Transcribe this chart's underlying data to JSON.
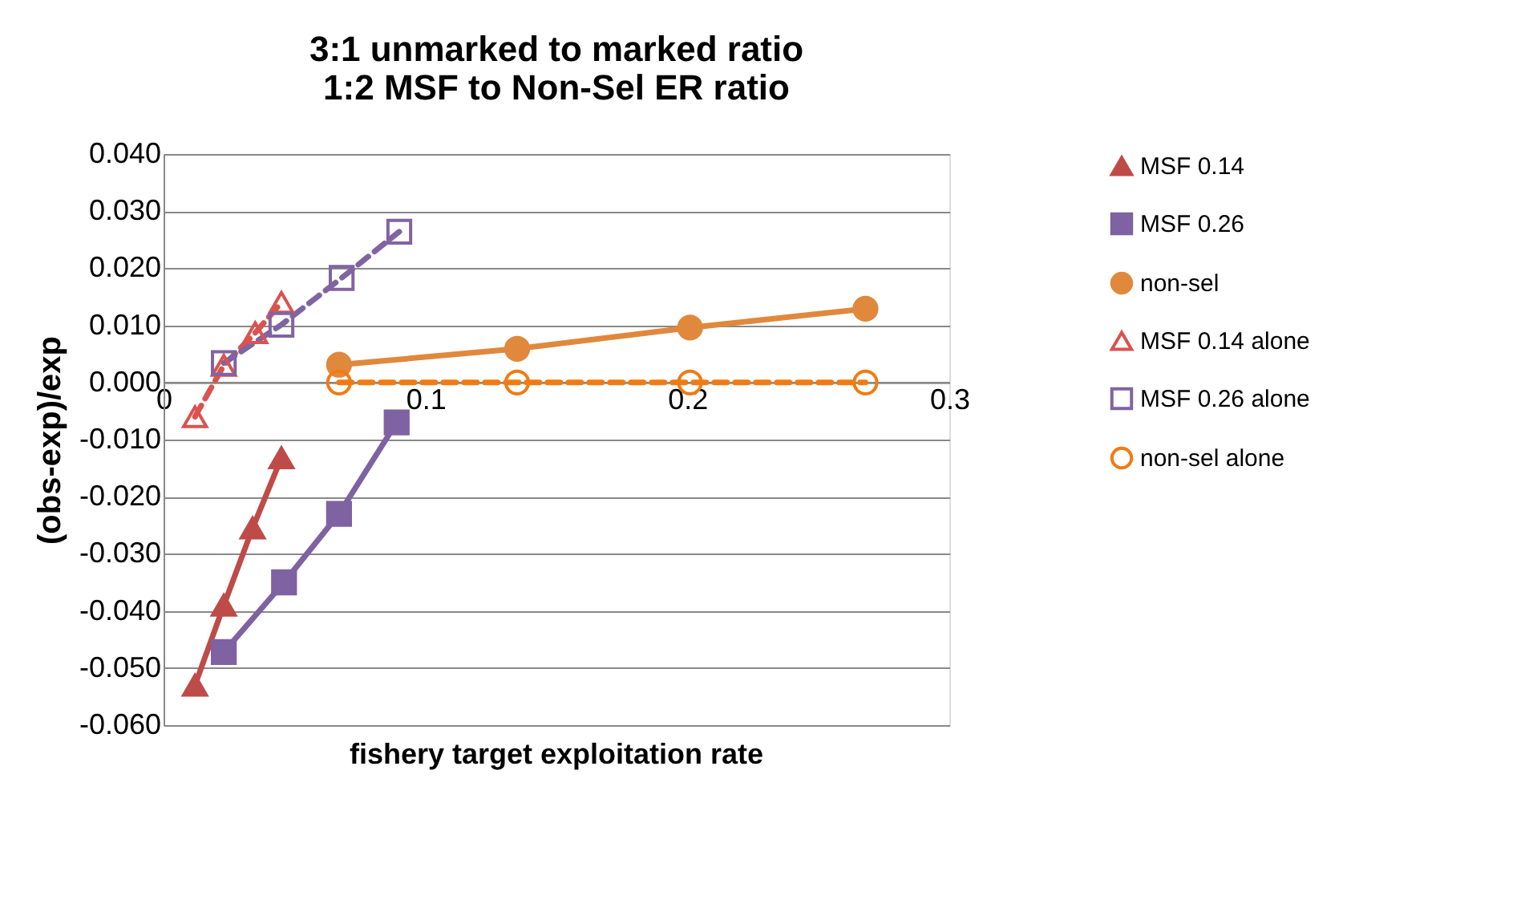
{
  "chart_data": {
    "type": "line",
    "title": "3:1 unmarked to marked ratio\n1:2 MSF to Non-Sel ER ratio",
    "xlabel": "fishery target exploitation rate",
    "ylabel": "(obs-exp)/exp",
    "xlim": [
      0,
      0.3
    ],
    "xticks": [
      0,
      0.1,
      0.2,
      0.3
    ],
    "ylim": [
      -0.06,
      0.04
    ],
    "yticks": [
      {
        "value": -0.06,
        "label": "-0.060"
      },
      {
        "value": -0.05,
        "label": "-0.050"
      },
      {
        "value": -0.04,
        "label": "-0.040"
      },
      {
        "value": -0.03,
        "label": "-0.030"
      },
      {
        "value": -0.02,
        "label": "-0.020"
      },
      {
        "value": -0.01,
        "label": "-0.010"
      },
      {
        "value": 0,
        "label": "0.000"
      },
      {
        "value": 0.01,
        "label": "0.010"
      },
      {
        "value": 0.02,
        "label": "0.020"
      },
      {
        "value": 0.03,
        "label": "0.030"
      },
      {
        "value": 0.04,
        "label": "0.040"
      }
    ],
    "grid": "y",
    "legend": "right",
    "series": [
      {
        "name": "MSF 0.14",
        "color": "#be4b48",
        "marker": "triangle",
        "line_style": "solid",
        "x": [
          0.012,
          0.023,
          0.034,
          0.045
        ],
        "values": [
          -0.053,
          -0.039,
          -0.0255,
          -0.0132
        ]
      },
      {
        "name": "MSF 0.26",
        "color": "#7e62a1",
        "marker": "square",
        "line_style": "solid",
        "x": [
          0.023,
          0.046,
          0.067,
          0.089
        ],
        "values": [
          -0.0472,
          -0.035,
          -0.023,
          -0.007
        ]
      },
      {
        "name": "non-sel",
        "color": "#e0883c",
        "marker": "circle",
        "line_style": "solid",
        "x": [
          0.067,
          0.135,
          0.201,
          0.268
        ],
        "values": [
          0.0031,
          0.0059,
          0.0096,
          0.0129
        ]
      },
      {
        "name": "MSF 0.14 alone",
        "color": "#d9534f",
        "marker": "triangle",
        "line_style": "dashed",
        "x": [
          0.012,
          0.023,
          0.035,
          0.045
        ],
        "values": [
          -0.006,
          0.003,
          0.0087,
          0.014
        ]
      },
      {
        "name": "MSF 0.26 alone",
        "color": "#8064a2",
        "marker": "square",
        "line_style": "dashed",
        "x": [
          0.023,
          0.045,
          0.068,
          0.09
        ],
        "values": [
          0.0034,
          0.0101,
          0.0183,
          0.0264
        ]
      },
      {
        "name": "non-sel alone",
        "color": "#f07b14",
        "marker": "circle",
        "line_style": "dashed",
        "x": [
          0.067,
          0.135,
          0.201,
          0.268
        ],
        "values": [
          0,
          0,
          0,
          0
        ]
      }
    ]
  }
}
